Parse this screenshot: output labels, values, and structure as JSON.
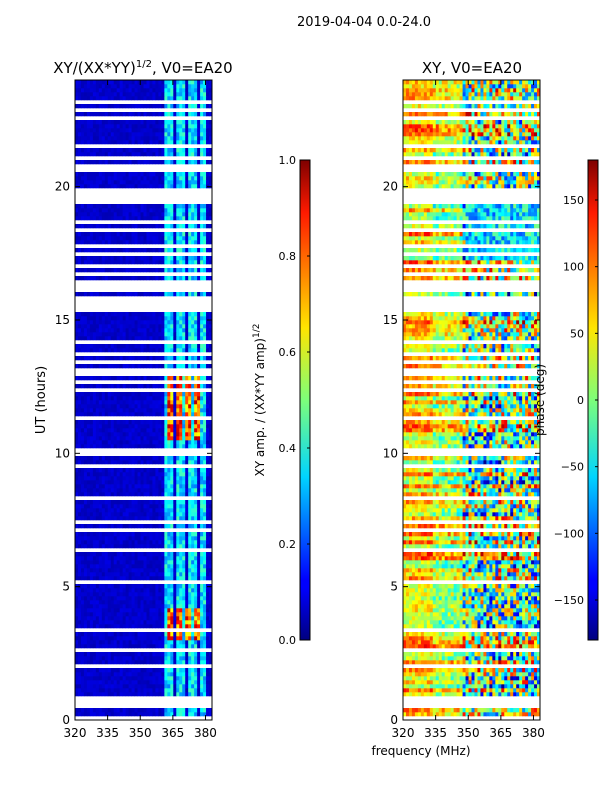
{
  "suptitle": "2019-04-04 0.0-24.0",
  "chart_data": [
    {
      "type": "heatmap",
      "title": "XY/(XX*YY)",
      "title_superscript": "1/2",
      "title_suffix": ", V0=EA20",
      "ylabel": "UT (hours)",
      "xlabel": "",
      "xlim": [
        320,
        383
      ],
      "ylim": [
        0,
        24
      ],
      "xticks": [
        320,
        335,
        350,
        365,
        380
      ],
      "yticks": [
        0,
        5,
        10,
        15,
        20
      ],
      "value_range": [
        0.0,
        1.0
      ],
      "colorbar": {
        "label": "XY amp. / (XX*YY amp)",
        "label_superscript": "1/2",
        "ticks": [
          "0.0",
          "0.2",
          "0.4",
          "0.6",
          "0.8",
          "1.0"
        ],
        "tick_values": [
          0.0,
          0.2,
          0.4,
          0.6,
          0.8,
          1.0
        ],
        "range": [
          0.0,
          1.0
        ]
      }
    },
    {
      "type": "heatmap",
      "title": "XY, V0=EA20",
      "xlabel": "frequency (MHz)",
      "ylabel": "",
      "xlim": [
        320,
        383
      ],
      "ylim": [
        0,
        24
      ],
      "xticks": [
        320,
        335,
        350,
        365,
        380
      ],
      "yticks": [
        0,
        5,
        10,
        15,
        20
      ],
      "value_range": [
        -180,
        180
      ],
      "colorbar": {
        "label": "phase (deg)",
        "ticks": [
          "−150",
          "−100",
          "−50",
          "0",
          "50",
          "100",
          "150"
        ],
        "tick_values": [
          -150,
          -100,
          -50,
          0,
          50,
          100,
          150
        ],
        "range": [
          -180,
          180
        ]
      }
    }
  ]
}
